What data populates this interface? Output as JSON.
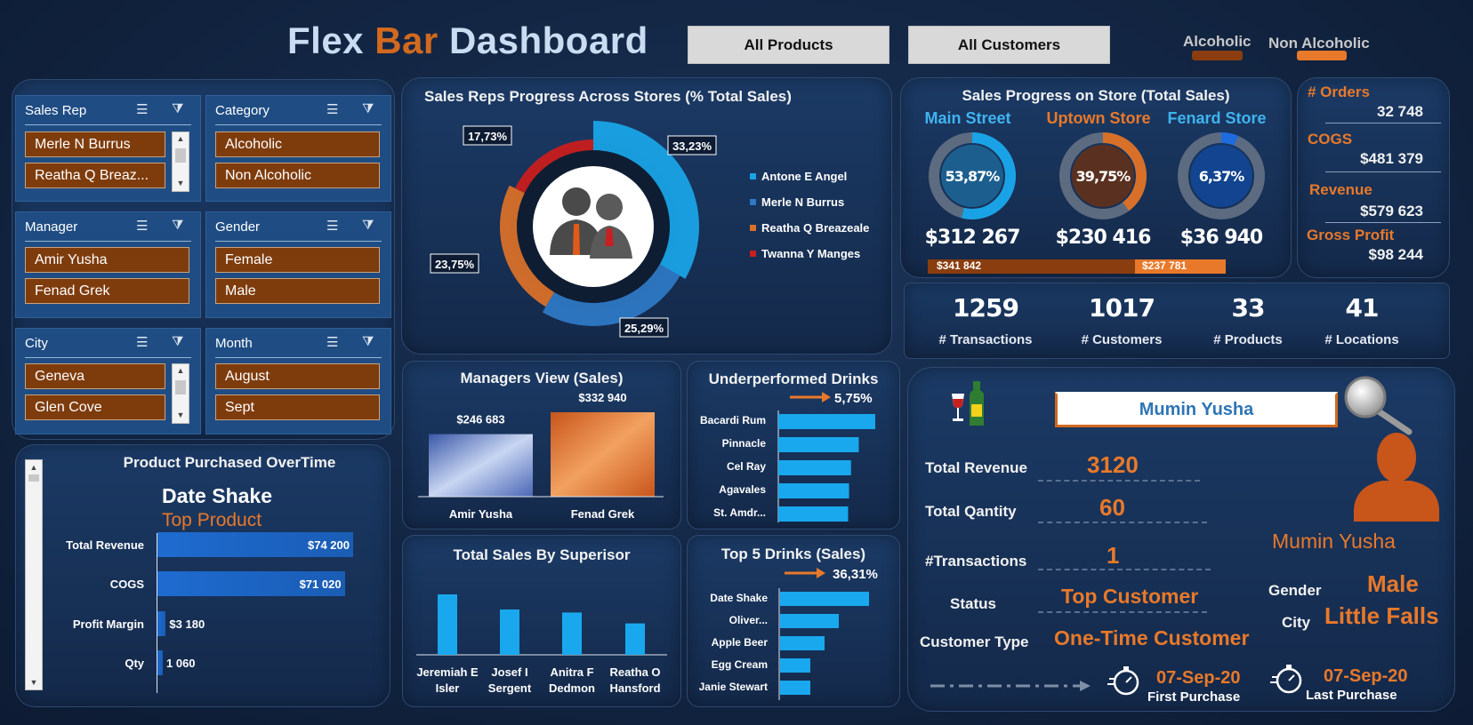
{
  "header": {
    "title_part1": "Flex",
    "title_part2": "Bar",
    "title_part3": "Dashboard",
    "btn_products": "All Products",
    "btn_customers": "All Customers",
    "legend_alcoholic": "Alcoholic",
    "legend_non_alcoholic": "Non Alcoholic",
    "color_alcoholic": "#8a3d0e",
    "color_non_alcoholic": "#e8792a"
  },
  "slicers": {
    "sales_rep": {
      "title": "Sales Rep",
      "items": [
        "Merle N Burrus",
        "Reatha Q Breaz..."
      ]
    },
    "category": {
      "title": "Category",
      "items": [
        "Alcoholic",
        "Non Alcoholic"
      ]
    },
    "manager": {
      "title": "Manager",
      "items": [
        "Amir Yusha",
        "Fenad Grek"
      ]
    },
    "gender": {
      "title": "Gender",
      "items": [
        "Female",
        "Male"
      ]
    },
    "city": {
      "title": "City",
      "items": [
        "Geneva",
        "Glen Cove"
      ]
    },
    "month": {
      "title": "Month",
      "items": [
        "August",
        "Sept"
      ]
    }
  },
  "sales_reps_chart": {
    "title": "Sales Reps Progress Across Stores (% Total Sales)",
    "labels": [
      "33,23%",
      "25,29%",
      "23,75%",
      "17,73%"
    ],
    "legend": [
      "Antone E Angel",
      "Merle N Burrus",
      "Reatha Q Breazeale",
      "Twanna Y Manges"
    ],
    "colors": [
      "#19a3e6",
      "#2e78c4",
      "#d8702a",
      "#c81f1f"
    ]
  },
  "store_progress": {
    "title": "Sales Progress on Store (Total Sales)",
    "stores": [
      {
        "name": "Main Street",
        "pct_label": "53,87%",
        "total": "$312 267",
        "name_color": "#3fb4f0"
      },
      {
        "name": "Uptown Store",
        "pct_label": "39,75%",
        "total": "$230 416",
        "name_color": "#e8792a"
      },
      {
        "name": "Fenard Store",
        "pct_label": "6,37%",
        "total": "$36 940",
        "name_color": "#3fb4f0"
      }
    ],
    "bar_alcoholic": "$341 842",
    "bar_non_alcoholic": "$237 781"
  },
  "kpis": {
    "orders_label": "# Orders",
    "orders_value": "32 748",
    "cogs_label": "COGS",
    "cogs_value": "$481 379",
    "revenue_label": "Revenue",
    "revenue_value": "$579 623",
    "profit_label": "Gross Profit",
    "profit_value": "$98 244"
  },
  "stats": [
    {
      "value": "1259",
      "label": "# Transactions"
    },
    {
      "value": "1017",
      "label": "# Customers"
    },
    {
      "value": "33",
      "label": "# Products"
    },
    {
      "value": "41",
      "label": "# Locations"
    }
  ],
  "product_overtime": {
    "title": "Product Purchased OverTime",
    "product": "Date Shake",
    "subtitle": "Top Product",
    "rows": [
      {
        "label": "Total Revenue",
        "value": "$74 200"
      },
      {
        "label": "COGS",
        "value": "$71 020"
      },
      {
        "label": "Profit Margin",
        "value": "$3 180"
      },
      {
        "label": "Qty",
        "value": "1 060"
      }
    ]
  },
  "chart_data": [
    {
      "type": "pie",
      "title": "Sales Reps Progress Across Stores (% Total Sales)",
      "categories": [
        "Antone E Angel",
        "Merle N Burrus",
        "Reatha Q Breazeale",
        "Twanna Y Manges"
      ],
      "values": [
        33.23,
        25.29,
        23.75,
        17.73
      ]
    },
    {
      "type": "bar",
      "title": "Managers View (Sales)",
      "categories": [
        "Amir Yusha",
        "Fenad Grek"
      ],
      "values": [
        246683,
        332940
      ],
      "value_labels": [
        "$246 683",
        "$332 940"
      ]
    },
    {
      "type": "bar",
      "title": "Underperformed Drinks",
      "indicator": "5,75%",
      "categories": [
        "Bacardi Rum",
        "Pinnacle",
        "Cel Ray",
        "Agavales",
        "St. Amdr..."
      ],
      "values": [
        100,
        83,
        75,
        73,
        72
      ]
    },
    {
      "type": "bar",
      "title": "Total Sales By Superisor",
      "categories": [
        "Jeremiah E Isler",
        "Josef I Sergent",
        "Anitra F Dedmon",
        "Reatha O Hansford"
      ],
      "values": [
        100,
        75,
        70,
        52
      ]
    },
    {
      "type": "bar",
      "title": "Top 5 Drinks (Sales)",
      "indicator": "36,31%",
      "categories": [
        "Date Shake",
        "Oliver...",
        "Apple Beer",
        "Egg Cream",
        "Janie Stewart"
      ],
      "values": [
        100,
        66,
        50,
        34,
        34
      ]
    },
    {
      "type": "bar",
      "title": "Product Purchased OverTime",
      "categories": [
        "Total Revenue",
        "COGS",
        "Profit Margin",
        "Qty"
      ],
      "values": [
        74200,
        71020,
        3180,
        1060
      ]
    },
    {
      "type": "pie",
      "title": "Main Street",
      "values": [
        53.87
      ]
    },
    {
      "type": "pie",
      "title": "Uptown Store",
      "values": [
        39.75
      ]
    },
    {
      "type": "pie",
      "title": "Fenard Store",
      "values": [
        6.37
      ]
    }
  ],
  "customer": {
    "search_value": "Mumin Yusha",
    "name": "Mumin Yusha",
    "total_revenue_label": "Total Revenue",
    "total_revenue": "3120",
    "total_qty_label": "Total Qantity",
    "total_qty": "60",
    "transactions_label": "#Transactions",
    "transactions": "1",
    "status_label": "Status",
    "status": "Top Customer",
    "type_label": "Customer Type",
    "type": "One-Time Customer",
    "gender_label": "Gender",
    "gender": "Male",
    "city_label": "City",
    "city": "Little Falls",
    "first_purchase_date": "07-Sep-20",
    "first_purchase_label": "First Purchase",
    "last_purchase_date": "07-Sep-20",
    "last_purchase_label": "Last Purchase"
  }
}
